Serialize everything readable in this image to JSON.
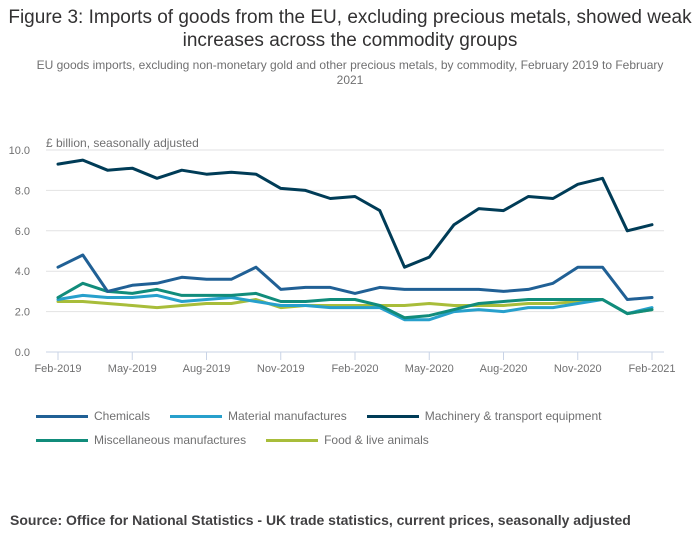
{
  "title": "Figure 3: Imports of goods from the EU, excluding precious metals, showed weak increases across the commodity groups",
  "subtitle": "EU goods imports, excluding non-monetary gold and other precious metals, by commodity, February 2019 to February 2021",
  "source": "Source: Office for National Statistics - UK trade statistics, current prices, seasonally adjusted",
  "chart_data": {
    "type": "line",
    "title": "Figure 3: Imports of goods from the EU, excluding precious metals, showed weak increases across the commodity groups",
    "subtitle": "EU goods imports, excluding non-monetary gold and other precious metals, by commodity, February 2019 to February 2021",
    "ylabel": "£ billion, seasonally adjusted",
    "xlabel": "",
    "ylim": [
      0,
      10
    ],
    "yticks": [
      "0.0",
      "2.0",
      "4.0",
      "6.0",
      "8.0",
      "10.0"
    ],
    "ytick_values": [
      0,
      2,
      4,
      6,
      8,
      10
    ],
    "grid": true,
    "legend_position": "bottom",
    "x": [
      "Feb-2019",
      "Mar-2019",
      "Apr-2019",
      "May-2019",
      "Jun-2019",
      "Jul-2019",
      "Aug-2019",
      "Sep-2019",
      "Oct-2019",
      "Nov-2019",
      "Dec-2019",
      "Jan-2020",
      "Feb-2020",
      "Mar-2020",
      "Apr-2020",
      "May-2020",
      "Jun-2020",
      "Jul-2020",
      "Aug-2020",
      "Sep-2020",
      "Oct-2020",
      "Nov-2020",
      "Dec-2020",
      "Jan-2021",
      "Feb-2021"
    ],
    "xtick_labels": [
      "Feb-2019",
      "May-2019",
      "Aug-2019",
      "Nov-2019",
      "Feb-2020",
      "May-2020",
      "Aug-2020",
      "Nov-2020",
      "Feb-2021"
    ],
    "xtick_indices": [
      0,
      3,
      6,
      9,
      12,
      15,
      18,
      21,
      24
    ],
    "series": [
      {
        "name": "Chemicals",
        "color": "#206095",
        "values": [
          4.2,
          4.8,
          3.0,
          3.3,
          3.4,
          3.7,
          3.6,
          3.6,
          4.2,
          3.1,
          3.2,
          3.2,
          2.9,
          3.2,
          3.1,
          3.1,
          3.1,
          3.1,
          3.0,
          3.1,
          3.4,
          4.2,
          4.2,
          2.6,
          2.7
        ]
      },
      {
        "name": "Material manufactures",
        "color": "#27a0cc",
        "values": [
          2.6,
          2.8,
          2.7,
          2.7,
          2.8,
          2.5,
          2.6,
          2.7,
          2.5,
          2.3,
          2.3,
          2.2,
          2.2,
          2.2,
          1.6,
          1.6,
          2.0,
          2.1,
          2.0,
          2.2,
          2.2,
          2.4,
          2.6,
          1.9,
          2.2
        ]
      },
      {
        "name": "Machinery & transport equipment",
        "color": "#003c57",
        "values": [
          9.3,
          9.5,
          9.0,
          9.1,
          8.6,
          9.0,
          8.8,
          8.9,
          8.8,
          8.1,
          8.0,
          7.6,
          7.7,
          7.0,
          4.2,
          4.7,
          6.3,
          7.1,
          7.0,
          7.7,
          7.6,
          8.3,
          8.6,
          6.0,
          6.3
        ]
      },
      {
        "name": "Miscellaneous manufactures",
        "color": "#118c7b",
        "values": [
          2.7,
          3.4,
          3.0,
          2.9,
          3.1,
          2.8,
          2.8,
          2.8,
          2.9,
          2.5,
          2.5,
          2.6,
          2.6,
          2.3,
          1.7,
          1.8,
          2.1,
          2.4,
          2.5,
          2.6,
          2.6,
          2.6,
          2.6,
          1.9,
          2.1
        ]
      },
      {
        "name": "Food & live animals",
        "color": "#a8bd3a",
        "values": [
          2.5,
          2.5,
          2.4,
          2.3,
          2.2,
          2.3,
          2.4,
          2.4,
          2.6,
          2.2,
          2.3,
          2.3,
          2.3,
          2.3,
          2.3,
          2.4,
          2.3,
          2.3,
          2.3,
          2.4,
          2.4,
          2.5,
          2.6,
          1.9,
          2.1
        ]
      }
    ]
  },
  "legend": {
    "rows": [
      [
        0,
        1,
        2
      ],
      [
        3,
        4
      ]
    ]
  }
}
